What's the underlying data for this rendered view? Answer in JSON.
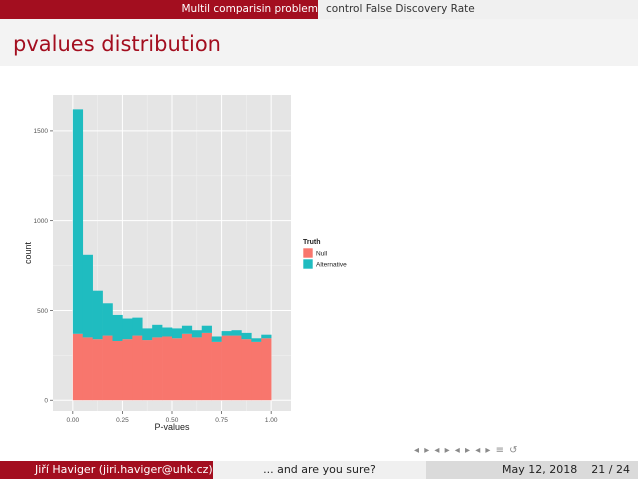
{
  "header": {
    "section_active": "Multil comparisin problem",
    "section_next": "control False Discovery Rate"
  },
  "slide": {
    "title": "pvalues distribution"
  },
  "colors": {
    "brand": "#a30e1f",
    "null": "#f8766d",
    "alternative": "#1fbcc0",
    "panel": "#e5e5e5"
  },
  "chart_data": {
    "type": "bar",
    "stacked": true,
    "xlabel": "P-values",
    "ylabel": "count",
    "xlim": [
      -0.1,
      1.1
    ],
    "ylim": [
      -60,
      1700
    ],
    "x_ticks": [
      "0.00",
      "0.25",
      "0.50",
      "0.75",
      "1.00"
    ],
    "y_ticks": [
      "0",
      "500",
      "1000",
      "1500"
    ],
    "bin_width": 0.05,
    "bin_starts": [
      0.0,
      0.05,
      0.1,
      0.15,
      0.2,
      0.25,
      0.3,
      0.35,
      0.4,
      0.45,
      0.5,
      0.55,
      0.6,
      0.65,
      0.7,
      0.75,
      0.8,
      0.85,
      0.9,
      0.95
    ],
    "legend": {
      "title": "Truth",
      "placement": "right"
    },
    "series": [
      {
        "name": "Null",
        "color": "#f8766d",
        "values": [
          370,
          350,
          340,
          360,
          330,
          340,
          360,
          335,
          350,
          355,
          345,
          370,
          350,
          375,
          325,
          360,
          360,
          340,
          325,
          345
        ]
      },
      {
        "name": "Alternative",
        "color": "#1fbcc0",
        "values": [
          1250,
          460,
          270,
          180,
          145,
          115,
          100,
          65,
          70,
          50,
          55,
          45,
          40,
          40,
          30,
          25,
          30,
          35,
          20,
          20
        ]
      }
    ]
  },
  "nav": {
    "symbols": "◂ ▸ ◂ ▸ ◂ ▸ ◂ ▸ ≡ ↺"
  },
  "footer": {
    "author": "Jiří Haviger (jiri.haviger@uhk.cz)",
    "short_title": "... and are you sure?",
    "date": "May 12, 2018",
    "page": "21 / 24"
  }
}
